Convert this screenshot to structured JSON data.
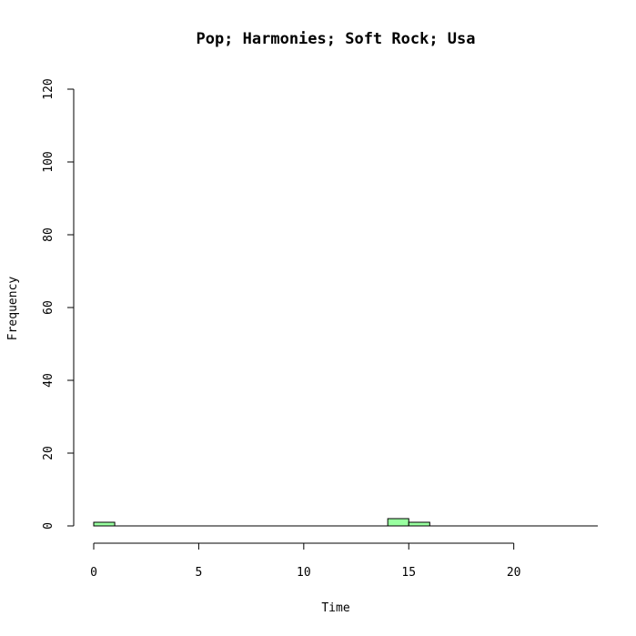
{
  "chart_data": {
    "type": "bar",
    "title": "Pop; Harmonies; Soft Rock; Usa",
    "xlabel": "Time",
    "ylabel": "Frequency",
    "bin_width": 1,
    "bins": [
      {
        "x0": 0,
        "x1": 1,
        "count": 1
      },
      {
        "x0": 1,
        "x1": 2,
        "count": 0
      },
      {
        "x0": 2,
        "x1": 3,
        "count": 0
      },
      {
        "x0": 3,
        "x1": 4,
        "count": 0
      },
      {
        "x0": 4,
        "x1": 5,
        "count": 0
      },
      {
        "x0": 5,
        "x1": 6,
        "count": 0
      },
      {
        "x0": 6,
        "x1": 7,
        "count": 0
      },
      {
        "x0": 7,
        "x1": 8,
        "count": 0
      },
      {
        "x0": 8,
        "x1": 9,
        "count": 0
      },
      {
        "x0": 9,
        "x1": 10,
        "count": 0
      },
      {
        "x0": 10,
        "x1": 11,
        "count": 0
      },
      {
        "x0": 11,
        "x1": 12,
        "count": 0
      },
      {
        "x0": 12,
        "x1": 13,
        "count": 0
      },
      {
        "x0": 13,
        "x1": 14,
        "count": 0
      },
      {
        "x0": 14,
        "x1": 15,
        "count": 2
      },
      {
        "x0": 15,
        "x1": 16,
        "count": 1
      },
      {
        "x0": 16,
        "x1": 17,
        "count": 0
      },
      {
        "x0": 17,
        "x1": 18,
        "count": 0
      },
      {
        "x0": 18,
        "x1": 19,
        "count": 0
      },
      {
        "x0": 19,
        "x1": 20,
        "count": 0
      },
      {
        "x0": 20,
        "x1": 21,
        "count": 0
      },
      {
        "x0": 21,
        "x1": 22,
        "count": 0
      },
      {
        "x0": 22,
        "x1": 23,
        "count": 0
      },
      {
        "x0": 23,
        "x1": 24,
        "count": 0
      }
    ],
    "xlim": [
      0,
      24
    ],
    "ylim": [
      0,
      120
    ],
    "x_ticks": [
      0,
      5,
      10,
      15,
      20
    ],
    "y_ticks": [
      0,
      20,
      40,
      60,
      80,
      100,
      120
    ],
    "bar_fill": "#99ffa0",
    "bar_stroke": "#000000",
    "grid": false,
    "legend": "none"
  }
}
